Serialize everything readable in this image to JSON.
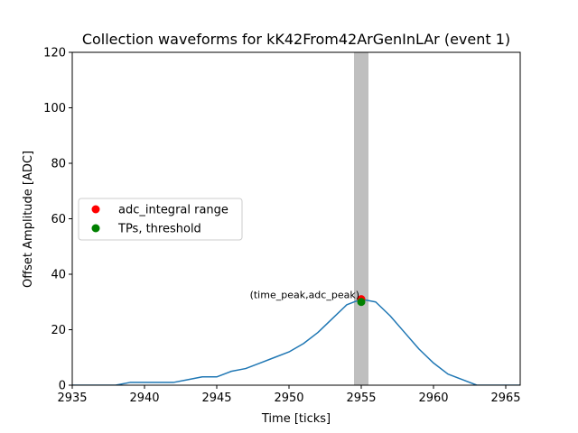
{
  "chart_data": {
    "type": "line",
    "title": "Collection waveforms for kK42From42ArGenInLAr (event 1)",
    "xlabel": "Time [ticks]",
    "ylabel": "Offset Amplitude [ADC]",
    "xlim": [
      2935,
      2966
    ],
    "ylim": [
      0,
      120
    ],
    "xticks": [
      2935,
      2940,
      2945,
      2950,
      2955,
      2960,
      2965
    ],
    "yticks": [
      0,
      20,
      40,
      60,
      80,
      100,
      120
    ],
    "grid": false,
    "legend_placement": "center-left",
    "series": [
      {
        "color": "#1f77b4",
        "x": [
          2935,
          2936,
          2937,
          2938,
          2939,
          2940,
          2941,
          2942,
          2943,
          2944,
          2945,
          2946,
          2947,
          2948,
          2949,
          2950,
          2951,
          2952,
          2953,
          2954,
          2955,
          2956,
          2957,
          2958,
          2959,
          2960,
          2961,
          2962,
          2963,
          2964,
          2965,
          2966
        ],
        "y": [
          0,
          0,
          0,
          0,
          1,
          1,
          1,
          1,
          2,
          3,
          3,
          5,
          6,
          8,
          10,
          12,
          15,
          19,
          24,
          29,
          31,
          30,
          25,
          19,
          13,
          8,
          4,
          2,
          0,
          0,
          0,
          0
        ]
      }
    ],
    "shaded_range": {
      "x": [
        2954.5,
        2955.5
      ],
      "color": "#bfbfbf"
    },
    "points": [
      {
        "name": "adc_integral range",
        "x": 2955,
        "y": 31,
        "color": "#ff0000"
      },
      {
        "name": "TPs, threshold",
        "x": 2955,
        "y": 30,
        "color": "#008000"
      }
    ],
    "annotation": {
      "text": "(time_peak,adc_peak)",
      "x": 2955,
      "y": 31
    }
  }
}
